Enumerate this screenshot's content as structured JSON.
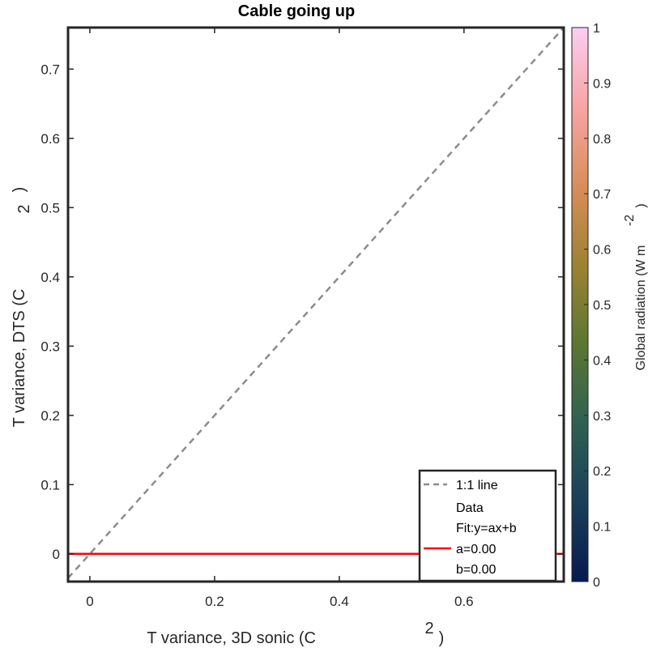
{
  "chart_data": {
    "type": "scatter",
    "title": "Cable going up",
    "xlabel": {
      "main": "T variance, 3D sonic (C",
      "sup": "2",
      "end": ")"
    },
    "ylabel": {
      "main": "T variance, DTS (C",
      "sup": "2",
      "end": ")"
    },
    "xlim": [
      -0.035,
      0.76
    ],
    "ylim": [
      -0.04,
      0.76
    ],
    "xticks": [
      0,
      0.2,
      0.4,
      0.6
    ],
    "xtick_labels": [
      "0",
      "0.2",
      "0.4",
      "0.6"
    ],
    "yticks": [
      0,
      0.1,
      0.2,
      0.3,
      0.4,
      0.5,
      0.6,
      0.7
    ],
    "ytick_labels": [
      "0",
      "0.1",
      "0.2",
      "0.3",
      "0.4",
      "0.5",
      "0.6",
      "0.7"
    ],
    "series": [
      {
        "name": "1:1 line",
        "kind": "dashed-line",
        "color": "#8c8c8c",
        "x": [
          -0.035,
          0.76
        ],
        "y": [
          -0.035,
          0.76
        ]
      },
      {
        "name": "Data",
        "kind": "scatter",
        "x": [],
        "y": []
      },
      {
        "name": "Fit:y=ax+b",
        "kind": "line",
        "color": "#ff0000",
        "x": [
          -0.035,
          0.76
        ],
        "y": [
          0,
          0
        ]
      }
    ],
    "legend": {
      "position": "bottom-right",
      "entries": [
        "1:1 line",
        "Data",
        "Fit:y=ax+b",
        "a=0.00",
        "b=0.00"
      ]
    },
    "fit": {
      "a": 0.0,
      "b": 0.0
    },
    "colorbar": {
      "label": {
        "main": "Global radiation (W m",
        "sup": "-2",
        "end": ")"
      },
      "range": [
        0,
        1
      ],
      "ticks": [
        0,
        0.1,
        0.2,
        0.3,
        0.4,
        0.5,
        0.6,
        0.7,
        0.8,
        0.9,
        1
      ],
      "tick_labels": [
        "0",
        "0.1",
        "0.2",
        "0.3",
        "0.4",
        "0.5",
        "0.6",
        "0.7",
        "0.8",
        "0.9",
        "1"
      ],
      "colormap": [
        "#061b4e",
        "#1a3f5a",
        "#2e6152",
        "#5b7632",
        "#9d8232",
        "#da8d5b",
        "#f7a5a5",
        "#fbcdf2"
      ]
    },
    "grid": false
  }
}
